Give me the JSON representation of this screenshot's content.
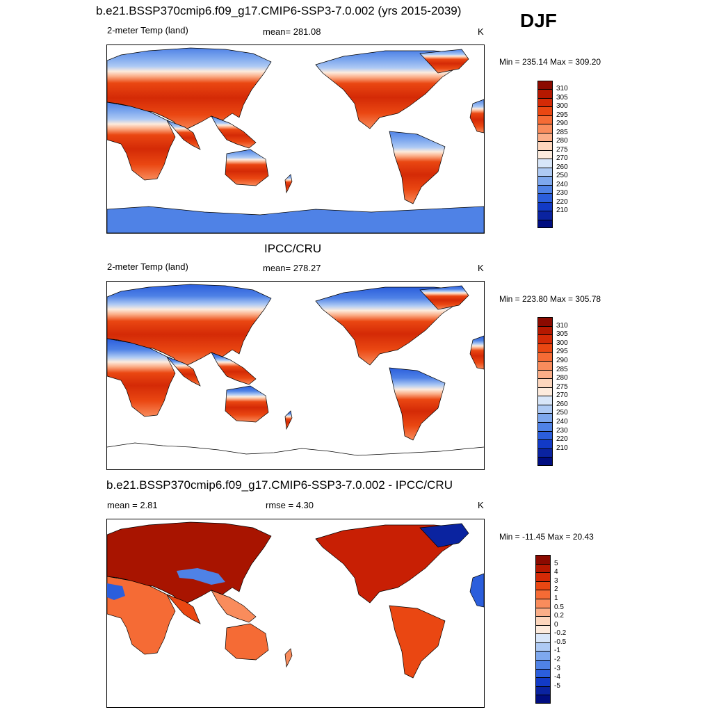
{
  "season": "DJF",
  "panels": [
    {
      "id": "model",
      "title": "b.e21.BSSP370cmip6.f09_g17.CMIP6-SSP3-7.0.002 (yrs 2015-2039)",
      "left_label": "2-meter Temp (land)",
      "center_label": "mean= 281.08",
      "unit": "K",
      "minmax": "Min = 235.14 Max = 309.20"
    },
    {
      "id": "obs",
      "title": "IPCC/CRU",
      "left_label": "2-meter Temp (land)",
      "center_label": "mean= 278.27",
      "unit": "K",
      "minmax": "Min = 223.80 Max = 305.78"
    },
    {
      "id": "diff",
      "title": "b.e21.BSSP370cmip6.f09_g17.CMIP6-SSP3-7.0.002 - IPCC/CRU",
      "left_label": "mean =   2.81",
      "center_label": "rmse =   4.30",
      "unit": "K",
      "minmax": "Min = -11.45 Max =  20.43"
    }
  ],
  "colorbars": {
    "temp": {
      "labels": [
        "310",
        "305",
        "300",
        "295",
        "290",
        "285",
        "280",
        "275",
        "270",
        "260",
        "250",
        "240",
        "230",
        "220",
        "210"
      ],
      "colors": [
        "#8b0a00",
        "#b51800",
        "#d42a06",
        "#ea4712",
        "#f56b35",
        "#f98c5c",
        "#fbae88",
        "#fdd6bd",
        "#fdebdd",
        "#d8e6f9",
        "#aecaf4",
        "#7ea8ee",
        "#4f82e6",
        "#2b5edc",
        "#123ac6",
        "#0a23a0",
        "#000d80"
      ]
    },
    "diff": {
      "labels": [
        "5",
        "4",
        "3",
        "2",
        "1",
        "0.5",
        "0.2",
        "0",
        "-0.2",
        "-0.5",
        "-1",
        "-2",
        "-3",
        "-4",
        "-5"
      ],
      "colors": [
        "#8b0a00",
        "#b51800",
        "#d42a06",
        "#ea4712",
        "#f56b35",
        "#f98c5c",
        "#fbae88",
        "#fdd6bd",
        "#fdebdd",
        "#d8e6f9",
        "#aecaf4",
        "#7ea8ee",
        "#4f82e6",
        "#2b5edc",
        "#123ac6",
        "#0a23a0",
        "#000d80"
      ]
    }
  },
  "chart_data": [
    {
      "type": "heatmap",
      "title": "b.e21.BSSP370cmip6.f09_g17.CMIP6-SSP3-7.0.002 (yrs 2015-2039)",
      "subtitle": "2-meter Temp (land)",
      "season": "DJF",
      "units": "K",
      "mean": 281.08,
      "min": 235.14,
      "max": 309.2,
      "contour_levels": [
        210,
        220,
        230,
        240,
        250,
        260,
        270,
        275,
        280,
        285,
        290,
        295,
        300,
        305,
        310
      ]
    },
    {
      "type": "heatmap",
      "title": "IPCC/CRU",
      "subtitle": "2-meter Temp (land)",
      "season": "DJF",
      "units": "K",
      "mean": 278.27,
      "min": 223.8,
      "max": 305.78,
      "contour_levels": [
        210,
        220,
        230,
        240,
        250,
        260,
        270,
        275,
        280,
        285,
        290,
        295,
        300,
        305,
        310
      ]
    },
    {
      "type": "heatmap",
      "title": "b.e21.BSSP370cmip6.f09_g17.CMIP6-SSP3-7.0.002 - IPCC/CRU",
      "season": "DJF",
      "units": "K",
      "mean": 2.81,
      "rmse": 4.3,
      "min": -11.45,
      "max": 20.43,
      "contour_levels": [
        -5,
        -4,
        -3,
        -2,
        -1,
        -0.5,
        -0.2,
        0,
        0.2,
        0.5,
        1,
        2,
        3,
        4,
        5
      ]
    }
  ]
}
